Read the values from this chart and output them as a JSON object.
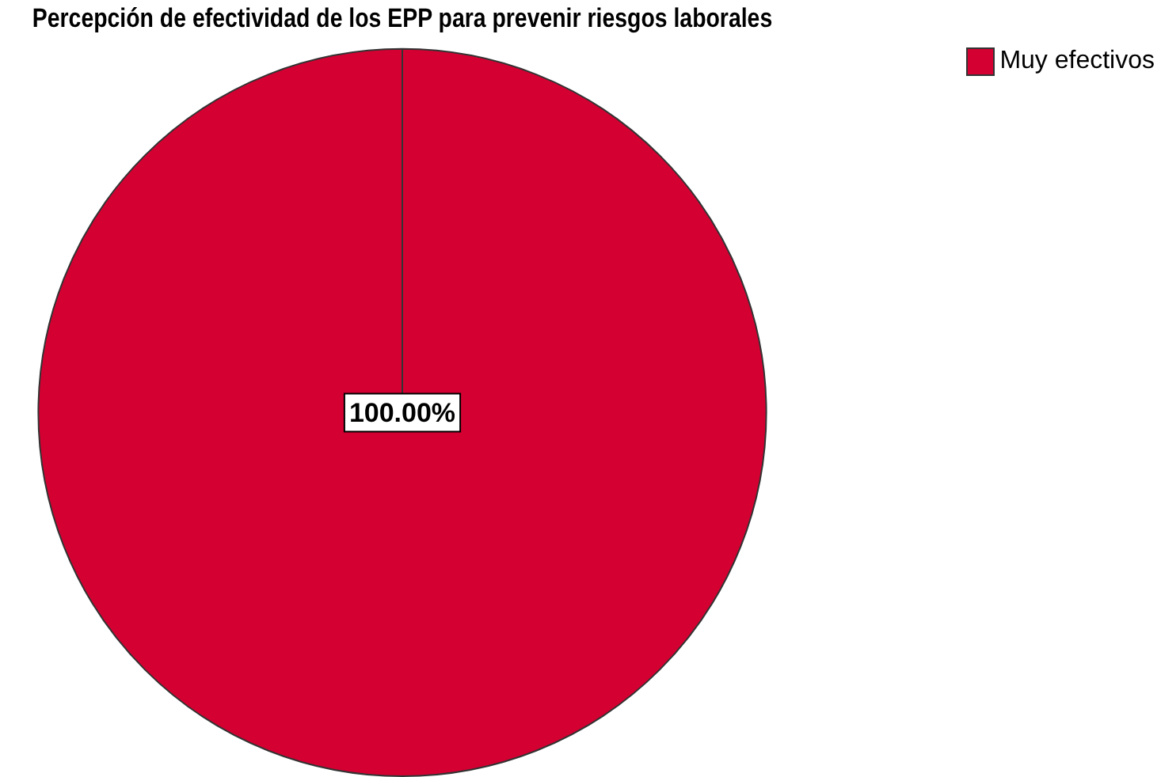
{
  "chart_data": {
    "type": "pie",
    "title": "Percepción de efectividad de los EPP para prevenir riesgos laborales",
    "categories": [
      "Muy efectivos"
    ],
    "values": [
      100
    ],
    "colors": [
      "#d50032"
    ],
    "value_labels": [
      "100.00%"
    ],
    "legend": "top right"
  }
}
